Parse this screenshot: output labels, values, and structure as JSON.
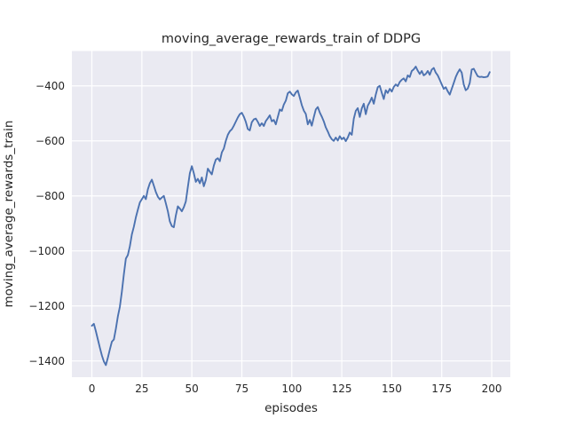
{
  "chart_data": {
    "type": "line",
    "title": "moving_average_rewards_train of DDPG",
    "xlabel": "episodes",
    "ylabel": "moving_average_rewards_train",
    "x_ticks": [
      0,
      25,
      50,
      75,
      100,
      125,
      150,
      175,
      200
    ],
    "y_ticks": [
      -400,
      -600,
      -800,
      -1000,
      -1200,
      -1400
    ],
    "xlim": [
      -10,
      209.3
    ],
    "ylim": [
      -1459,
      -273.5
    ],
    "grid": true,
    "legend": "none",
    "plot_background": "#EAEAF2",
    "figure_background": "#FFFFFF",
    "gridline_color": "#FFFFFF",
    "text_color": "#262626",
    "series": [
      {
        "name": "moving_average_rewards_train",
        "color": "#4C72B0",
        "x_start": 0,
        "x_step": 1,
        "n_points": 200,
        "values": [
          -1272,
          -1265,
          -1292,
          -1322,
          -1352,
          -1380,
          -1402,
          -1415,
          -1388,
          -1358,
          -1330,
          -1322,
          -1283,
          -1238,
          -1203,
          -1148,
          -1085,
          -1028,
          -1015,
          -983,
          -940,
          -912,
          -878,
          -850,
          -824,
          -812,
          -800,
          -812,
          -776,
          -754,
          -741,
          -763,
          -786,
          -803,
          -813,
          -806,
          -800,
          -827,
          -856,
          -893,
          -910,
          -914,
          -871,
          -838,
          -846,
          -856,
          -841,
          -820,
          -768,
          -718,
          -692,
          -718,
          -749,
          -738,
          -754,
          -733,
          -765,
          -742,
          -701,
          -712,
          -722,
          -690,
          -668,
          -663,
          -674,
          -642,
          -628,
          -600,
          -578,
          -565,
          -558,
          -545,
          -530,
          -515,
          -503,
          -498,
          -512,
          -531,
          -557,
          -562,
          -532,
          -522,
          -519,
          -531,
          -546,
          -536,
          -546,
          -528,
          -518,
          -507,
          -529,
          -524,
          -540,
          -513,
          -486,
          -491,
          -468,
          -454,
          -427,
          -421,
          -431,
          -437,
          -424,
          -417,
          -443,
          -470,
          -490,
          -502,
          -540,
          -524,
          -545,
          -514,
          -486,
          -477,
          -497,
          -512,
          -529,
          -551,
          -566,
          -583,
          -594,
          -600,
          -588,
          -599,
          -583,
          -594,
          -588,
          -601,
          -588,
          -570,
          -578,
          -520,
          -491,
          -481,
          -513,
          -482,
          -465,
          -503,
          -472,
          -459,
          -443,
          -465,
          -432,
          -405,
          -400,
          -425,
          -448,
          -416,
          -426,
          -411,
          -421,
          -404,
          -395,
          -401,
          -386,
          -378,
          -373,
          -384,
          -362,
          -368,
          -346,
          -340,
          -330,
          -345,
          -357,
          -346,
          -362,
          -357,
          -346,
          -360,
          -341,
          -335,
          -352,
          -362,
          -378,
          -395,
          -411,
          -405,
          -420,
          -432,
          -411,
          -390,
          -368,
          -352,
          -340,
          -352,
          -395,
          -416,
          -410,
          -390,
          -341,
          -338,
          -352,
          -365,
          -368,
          -367,
          -369,
          -368,
          -366,
          -350
        ]
      }
    ]
  }
}
